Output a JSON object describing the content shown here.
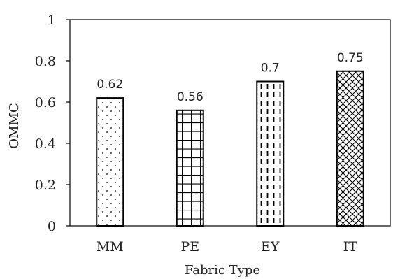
{
  "chart_data": {
    "type": "bar",
    "categories": [
      "MM",
      "PE",
      "EY",
      "IT"
    ],
    "values": [
      0.62,
      0.56,
      0.7,
      0.75
    ],
    "data_labels": [
      "0.62",
      "0.56",
      "0.7",
      "0.75"
    ],
    "patterns": [
      "dots",
      "grid",
      "dashed-vertical",
      "crosshatch"
    ],
    "title": "",
    "xlabel": "Fabric Type",
    "ylabel": "OMMC",
    "ylim": [
      0,
      1
    ],
    "yticks": [
      "0",
      "0.2",
      "0.4",
      "0.6",
      "0.8",
      "1"
    ],
    "grid": false,
    "legend": "none",
    "bar_fill": "#ffffff",
    "bar_stroke": "#000000",
    "axis_color": "#000000"
  }
}
